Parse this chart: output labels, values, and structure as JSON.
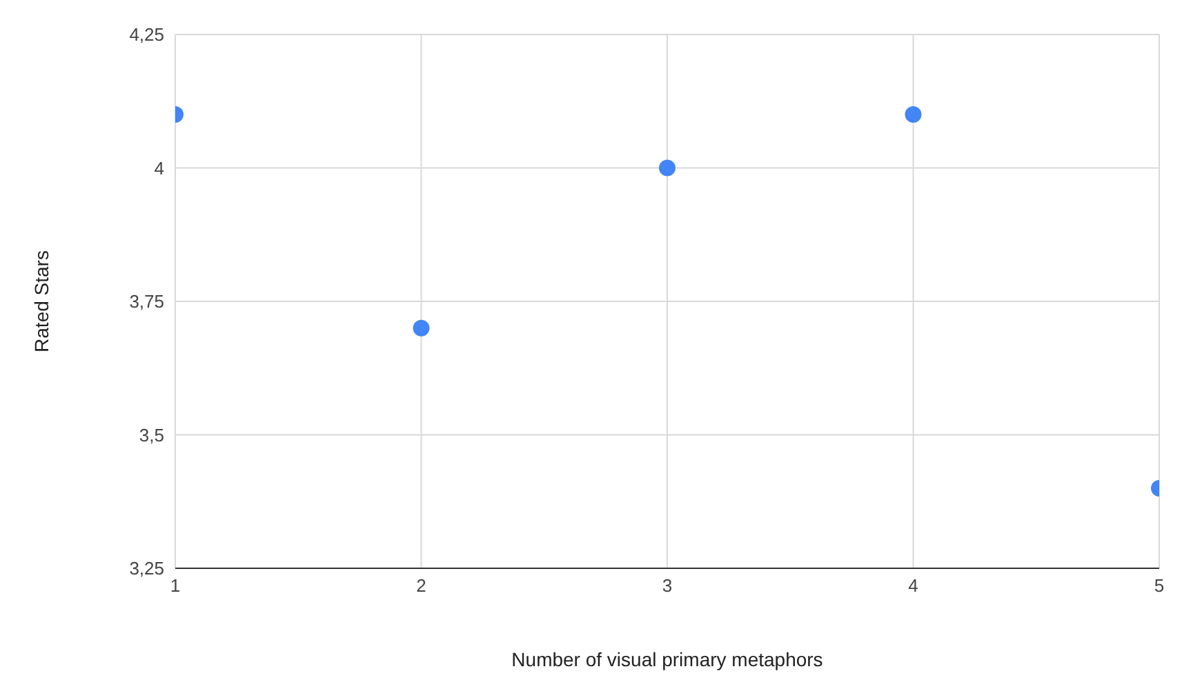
{
  "chart_data": {
    "type": "scatter",
    "xlabel": "Number of visual primary metaphors",
    "ylabel": "Rated Stars",
    "x": [
      1,
      2,
      3,
      4,
      5
    ],
    "series": [
      {
        "color": "#4285f4",
        "values": [
          4.1,
          3.7,
          4.0,
          4.1,
          3.4
        ]
      }
    ],
    "xlim": [
      1,
      5
    ],
    "xticks": [
      1,
      2,
      3,
      4,
      5
    ],
    "ylim": [
      3.25,
      4.25
    ],
    "yticks": [
      {
        "value": 3.25,
        "label": "3,25"
      },
      {
        "value": 3.5,
        "label": "3,5"
      },
      {
        "value": 3.75,
        "label": "3,75"
      },
      {
        "value": 4,
        "label": "4"
      },
      {
        "value": 4.25,
        "label": "4,25"
      }
    ],
    "grid": true,
    "marker": "circle",
    "legend": false
  }
}
